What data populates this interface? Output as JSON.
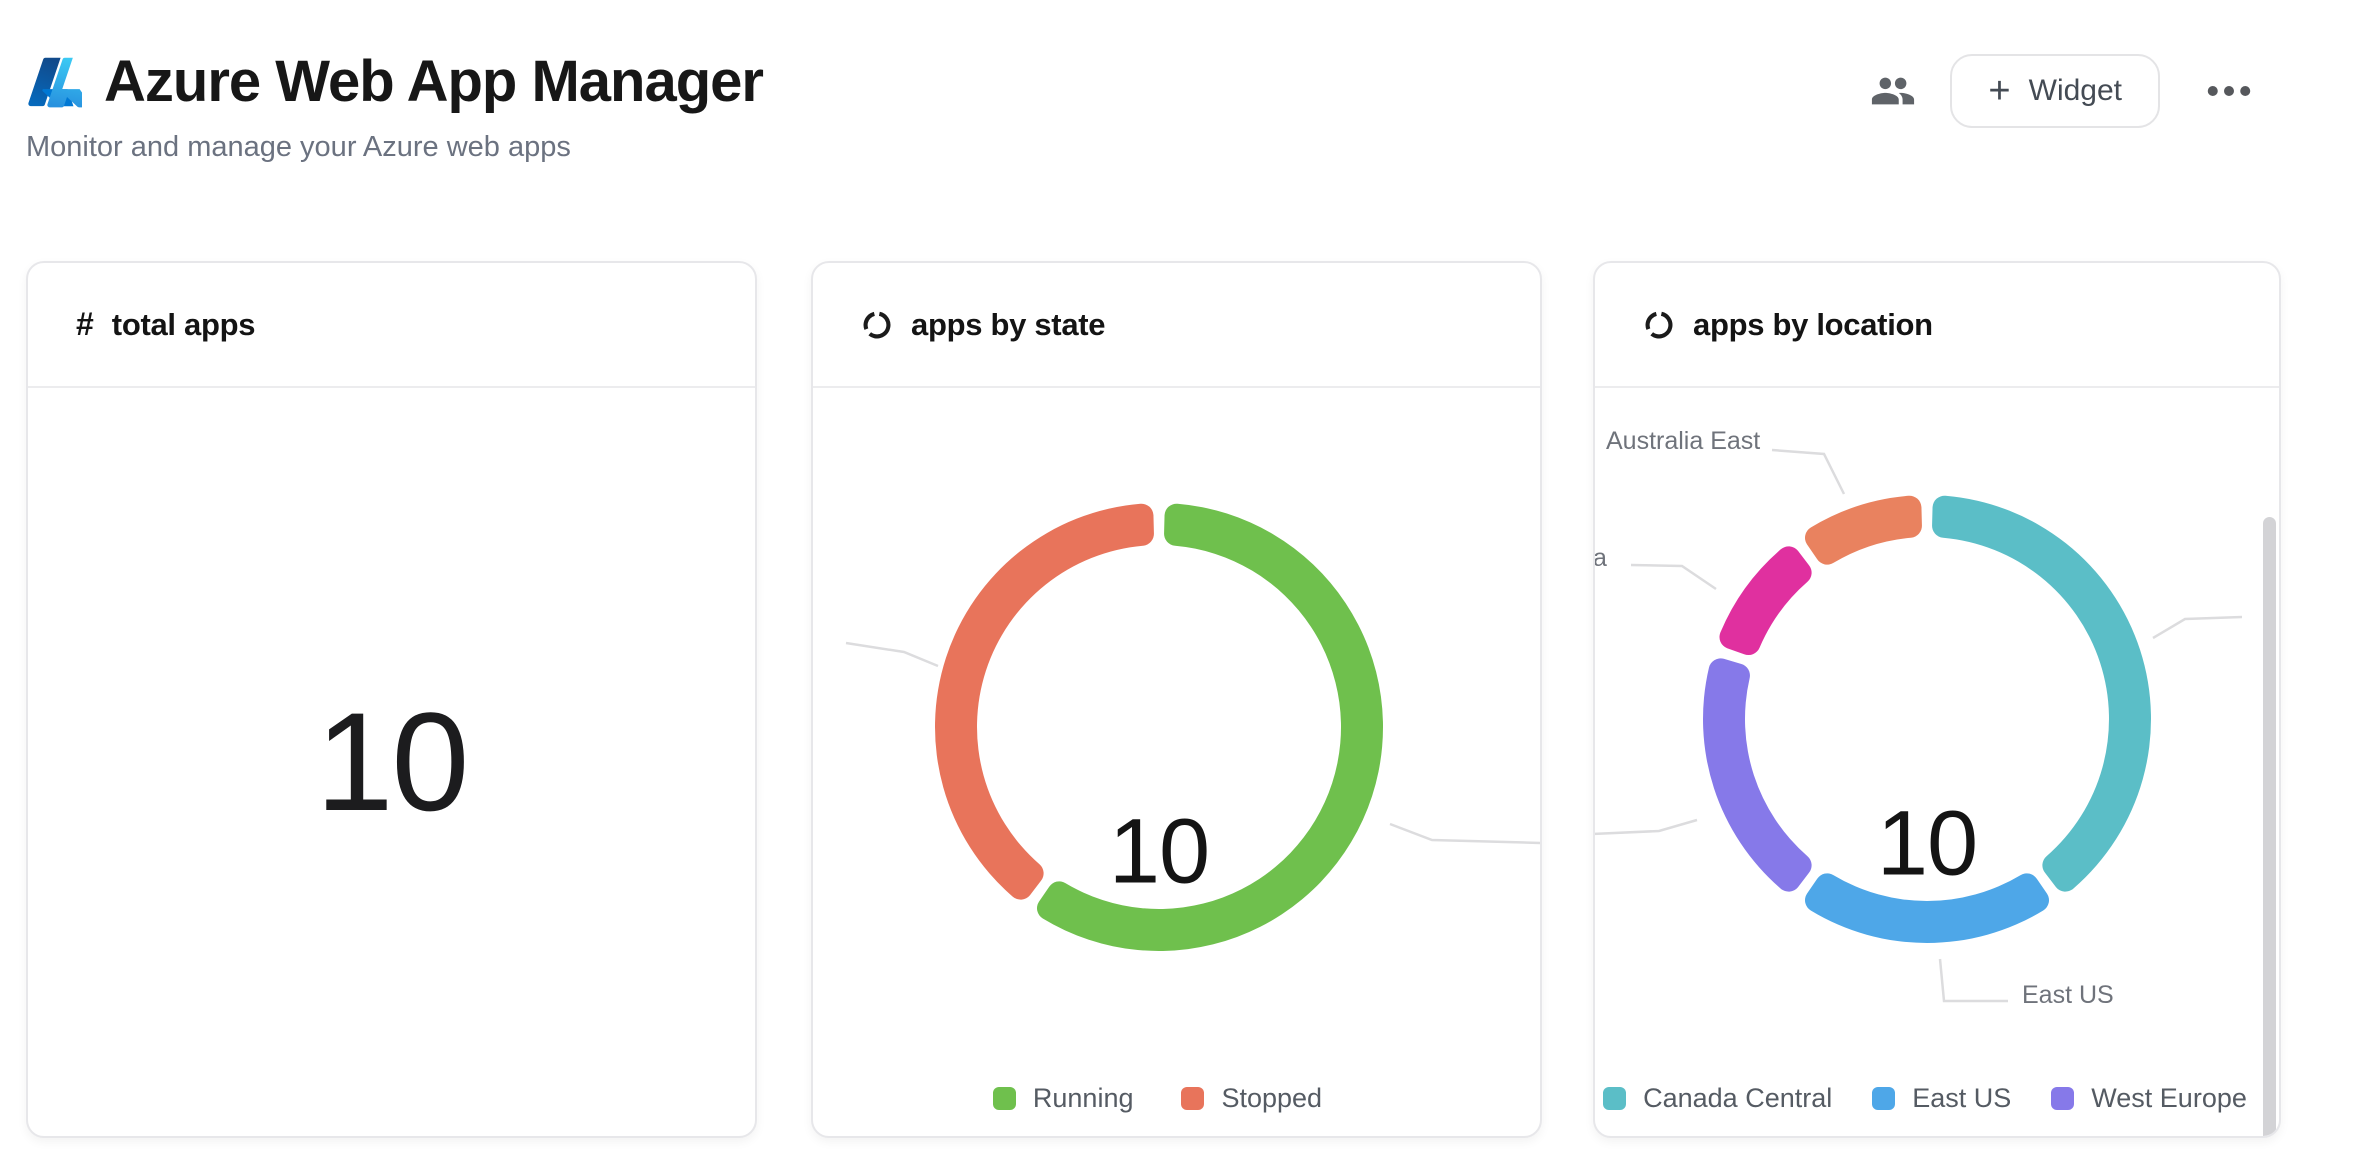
{
  "header": {
    "title": "Azure Web App Manager",
    "subtitle": "Monitor and manage your Azure web apps",
    "actions": {
      "widget_button": {
        "icon": "+",
        "label": "Widget"
      }
    }
  },
  "cards": {
    "total_apps": {
      "icon": "#",
      "title": "total apps",
      "value": "10"
    },
    "apps_by_state": {
      "title": "apps by state",
      "center_value": "10",
      "legend": [
        {
          "label": "Running",
          "color": "#6FC04D"
        },
        {
          "label": "Stopped",
          "color": "#E8745B"
        }
      ]
    },
    "apps_by_location": {
      "title": "apps by location",
      "center_value": "10",
      "legend": [
        {
          "label": "Canada Central",
          "color": "#5BBEC7"
        },
        {
          "label": "East US",
          "color": "#4EA7E8"
        },
        {
          "label": "West Europe",
          "color": "#8679E9"
        }
      ],
      "outer_labels": {
        "australia_east": "Australia East",
        "east_us": "East US",
        "clipped_fragment": "a"
      }
    }
  },
  "chart_data": [
    {
      "type": "pie",
      "title": "apps by state",
      "center_label": "10",
      "total": 10,
      "legend_position": "bottom",
      "segments": [
        {
          "label": "Running",
          "value": 6,
          "color": "#6FC04D"
        },
        {
          "label": "Stopped",
          "value": 4,
          "color": "#E8745B"
        }
      ]
    },
    {
      "type": "pie",
      "title": "apps by location",
      "center_label": "10",
      "total": 10,
      "legend_position": "bottom",
      "segments": [
        {
          "label": "Canada Central",
          "value": 4,
          "color": "#5BBEC7"
        },
        {
          "label": "East US",
          "value": 2,
          "color": "#4EA7E8"
        },
        {
          "label": "West Europe",
          "value": 2,
          "color": "#8679E9"
        },
        {
          "label": "a (label clipped)",
          "value": 1,
          "color": "#E0309F"
        },
        {
          "label": "Australia East",
          "value": 1,
          "color": "#E9825F"
        }
      ]
    }
  ]
}
